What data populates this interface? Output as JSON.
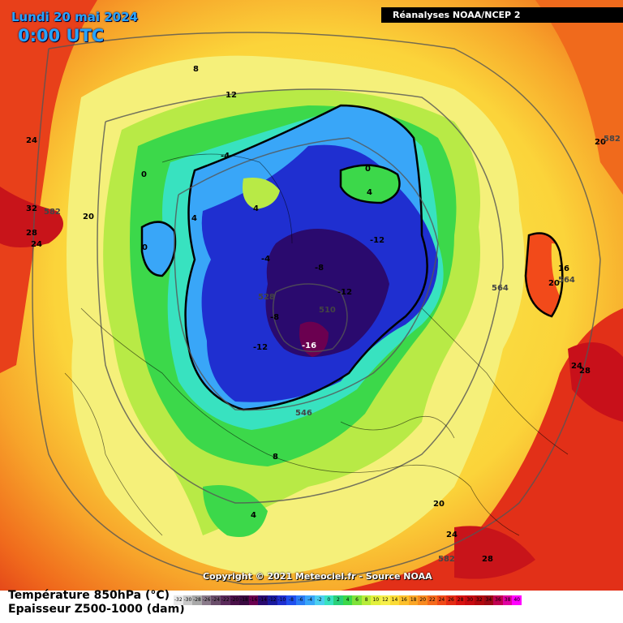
{
  "header": {
    "date": "Lundi 20 mai 2024",
    "time": "0:00 UTC",
    "source": "Réanalyses NOAA/NCEP 2"
  },
  "footer": {
    "copyright": "Copyright © 2021 Meteociel.fr - Source NOAA",
    "title_temp": "Température 850hPa (°C)",
    "title_thickness": "Epaisseur Z500-1000 (dam)"
  },
  "legend": {
    "values": [
      "-32",
      "-30",
      "-28",
      "-26",
      "-24",
      "-22",
      "-20",
      "-18",
      "-16",
      "-14",
      "-12",
      "-10",
      "-8",
      "-6",
      "-4",
      "-2",
      "0",
      "2",
      "4",
      "6",
      "8",
      "10",
      "12",
      "14",
      "16",
      "18",
      "20",
      "22",
      "24",
      "26",
      "28",
      "30",
      "32",
      "34",
      "36",
      "38",
      "40"
    ],
    "colors": [
      "#e8e8e8",
      "#c8c8c8",
      "#a8a8a8",
      "#8a7a8a",
      "#6a4e6a",
      "#5a2a5a",
      "#4a1048",
      "#3a0a40",
      "#6b0050",
      "#2a0a6e",
      "#1a1a9e",
      "#1f2fd0",
      "#2050ee",
      "#2b7df5",
      "#39a6f8",
      "#4ccff0",
      "#38e2c0",
      "#29d07a",
      "#3cd84a",
      "#7ee23a",
      "#b7ec3a",
      "#e2f03c",
      "#f7ef4a",
      "#fbdb36",
      "#fdc02c",
      "#fba626",
      "#f88a20",
      "#f56a1c",
      "#f04a18",
      "#e42c14",
      "#d81210",
      "#c80a10",
      "#b0080e",
      "#9a0814",
      "#c00050",
      "#e000a0",
      "#ff00ff"
    ]
  },
  "map_labels": {
    "temps": [
      "8",
      "12",
      "-4",
      "0",
      "4",
      "4",
      "0",
      "-4",
      "4",
      "0",
      "-12",
      "-8",
      "-12",
      "-8",
      "-12",
      "-16",
      "4",
      "8",
      "24",
      "32",
      "20",
      "28",
      "24",
      "20",
      "16",
      "20",
      "24",
      "28",
      "20",
      "24",
      "28"
    ],
    "thickness": [
      "582",
      "528",
      "510",
      "546",
      "564",
      "564",
      "582",
      "582"
    ]
  }
}
